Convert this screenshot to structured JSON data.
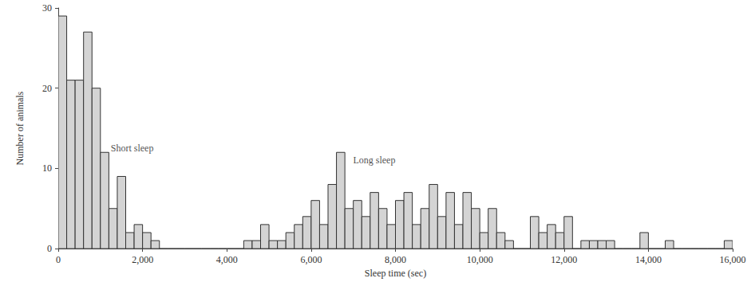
{
  "chart_data": {
    "type": "histogram",
    "x_label": "Sleep time (sec)",
    "y_label": "Number of animals",
    "bins": [
      0,
      200,
      400,
      600,
      800,
      1000,
      1200,
      1400,
      1600,
      1800,
      2000,
      2200,
      2400,
      2600,
      2800,
      3000,
      3200,
      3400,
      3600,
      3800,
      4000,
      4200,
      4400,
      4600,
      4800,
      5000,
      5200,
      5400,
      5600,
      5800,
      6000,
      6200,
      6400,
      6600,
      6800,
      7000,
      7200,
      7400,
      7600,
      7800,
      8000,
      8200,
      8400,
      8600,
      8800,
      9000,
      9200,
      9400,
      9600,
      9800,
      10000,
      10200,
      10400,
      10600,
      10800,
      11000,
      11200,
      11400,
      11600,
      11800,
      12000,
      12200,
      12400,
      12600,
      12800,
      13000,
      13200,
      13400,
      13600,
      13800,
      14000,
      14200,
      14400,
      14600,
      14800,
      15000,
      15200,
      15400,
      15600,
      15800,
      16000
    ],
    "values": [
      29,
      21,
      21,
      27,
      20,
      12,
      5,
      9,
      2,
      3,
      2,
      1,
      0,
      0,
      0,
      0,
      0,
      0,
      0,
      0,
      0,
      0,
      1,
      1,
      3,
      1,
      1,
      2,
      3,
      4,
      6,
      3,
      8,
      12,
      5,
      6,
      4,
      7,
      5,
      3,
      6,
      7,
      3,
      5,
      8,
      4,
      7,
      3,
      7,
      5,
      2,
      5,
      2,
      1,
      0,
      0,
      4,
      2,
      3,
      2,
      4,
      0,
      1,
      1,
      1,
      1,
      0,
      0,
      0,
      2,
      0,
      0,
      1,
      0,
      0,
      0,
      0,
      0,
      0,
      1
    ],
    "color": "#d4d4d4",
    "annotations": [
      {
        "text": "Short sleep",
        "x": 1150,
        "y": 12.5
      },
      {
        "text": "Long sleep",
        "x": 6900,
        "y": 11
      }
    ],
    "xlim": [
      0,
      16000
    ],
    "xticks": [
      0,
      {
        "value": 2000,
        "label": "2,000"
      },
      {
        "value": 4000,
        "label": "4,000"
      },
      {
        "value": 6000,
        "label": "6,000"
      },
      {
        "value": 8000,
        "label": "8,000"
      },
      {
        "value": 10000,
        "label": "10,000"
      },
      {
        "value": 12000,
        "label": "12,000"
      },
      {
        "value": 14000,
        "label": "14,000"
      },
      {
        "value": 16000,
        "label": "16,000"
      }
    ],
    "ylim": [
      0,
      30
    ],
    "yticks": [
      0,
      10,
      20,
      30
    ],
    "grid": false
  }
}
